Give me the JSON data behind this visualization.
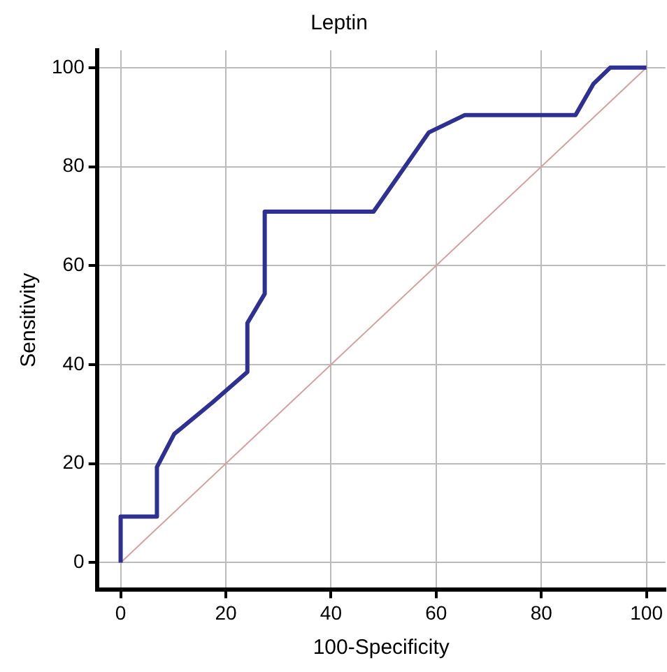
{
  "chart_data": {
    "type": "line",
    "title": "Leptin",
    "xlabel": "100-Specificity",
    "ylabel": "Sensitivity",
    "series": [
      {
        "color": "#2e3192",
        "x": [
          0,
          0,
          6.9,
          6.9,
          10.2,
          17.4,
          24.1,
          24.1,
          27.4,
          27.4,
          48.1,
          58.6,
          65.4,
          86.5,
          89.9,
          93.1,
          100
        ],
        "values": [
          0,
          9.3,
          9.3,
          19.3,
          26,
          32.3,
          38.5,
          48.4,
          54.3,
          70.9,
          70.9,
          86.9,
          90.4,
          90.4,
          96.7,
          100,
          100
        ]
      },
      {
        "color": "#d4a0a0",
        "x": [
          0,
          100
        ],
        "values": [
          0,
          100
        ]
      }
    ],
    "xlim": [
      -4.5,
      103.6
    ],
    "ylim": [
      -5.5,
      103.5
    ],
    "xticks": [
      0,
      20,
      40,
      60,
      80,
      100
    ],
    "yticks": [
      0,
      20,
      40,
      60,
      80,
      100
    ],
    "grid": true,
    "legend": false,
    "marker": "none",
    "line_style": "solid"
  }
}
